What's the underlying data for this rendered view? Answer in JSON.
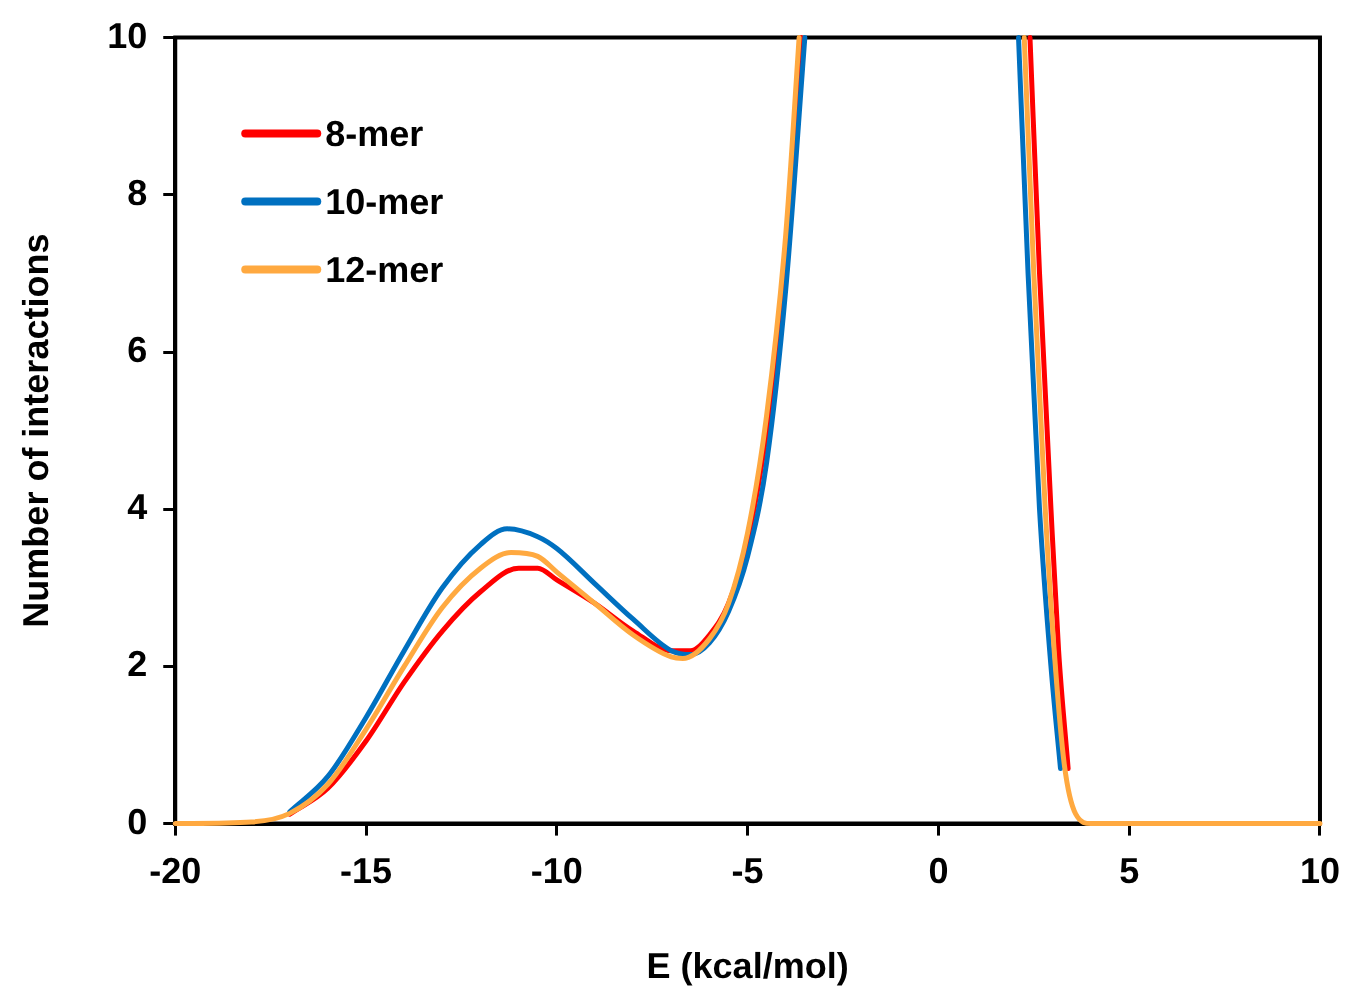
{
  "chart_data": {
    "type": "line",
    "xlabel": "E (kcal/mol)",
    "ylabel": "Number of interactions",
    "xlim": [
      -20,
      10
    ],
    "xticks": [
      -20,
      -15,
      -10,
      -5,
      0,
      5,
      10
    ],
    "ylim": [
      0,
      10
    ],
    "yticks": [
      0,
      2,
      4,
      6,
      8,
      10
    ],
    "grid": false,
    "legend": "top left",
    "marker": "none",
    "line_style": "solid",
    "series": [
      {
        "name": "8-mer",
        "color": "#ff0000",
        "x": [
          -17,
          -16,
          -15,
          -14,
          -13,
          -12,
          -11,
          -10.5,
          -10,
          -9,
          -8,
          -7,
          -6.5,
          -6,
          -5.5,
          -5,
          -4.5,
          -4,
          -3.6,
          0,
          2.4,
          2.65,
          2.95,
          3.15,
          3.4
        ],
        "values": [
          0.12,
          0.45,
          1.05,
          1.8,
          2.45,
          2.95,
          3.25,
          3.25,
          3.1,
          2.8,
          2.45,
          2.2,
          2.2,
          2.4,
          2.8,
          3.6,
          5,
          7.2,
          10,
          null,
          10,
          7,
          4,
          2.2,
          0.7
        ]
      },
      {
        "name": "10-mer",
        "color": "#0070c0",
        "x": [
          -17,
          -16,
          -15,
          -14,
          -13,
          -12,
          -11.3,
          -10.5,
          -10,
          -9,
          -8,
          -7,
          -6.5,
          -6,
          -5.5,
          -5,
          -4.5,
          -4,
          -3.5,
          0,
          2.1,
          2.35,
          2.65,
          2.95,
          3.2
        ],
        "values": [
          0.15,
          0.6,
          1.35,
          2.2,
          3,
          3.55,
          3.75,
          3.65,
          3.5,
          3.05,
          2.6,
          2.2,
          2.15,
          2.3,
          2.7,
          3.4,
          4.6,
          6.8,
          10,
          null,
          10,
          7,
          4,
          2,
          0.7
        ]
      },
      {
        "name": "12-mer",
        "color": "#ffa940",
        "x": [
          -20,
          -18,
          -17,
          -16,
          -15,
          -14,
          -13,
          -12,
          -11.2,
          -10.5,
          -10,
          -9,
          -8,
          -7,
          -6.7,
          -6,
          -5.5,
          -5,
          -4.5,
          -4,
          -3.65,
          0,
          2.25,
          2.5,
          2.8,
          3.05,
          3.3,
          3.6,
          4,
          10
        ],
        "values": [
          0,
          0.02,
          0.13,
          0.5,
          1.2,
          2,
          2.75,
          3.25,
          3.45,
          3.4,
          3.2,
          2.8,
          2.4,
          2.12,
          2.1,
          2.35,
          2.8,
          3.7,
          5.2,
          7.5,
          10,
          null,
          10,
          7,
          4,
          2.1,
          0.75,
          0.12,
          0,
          0
        ]
      }
    ]
  }
}
